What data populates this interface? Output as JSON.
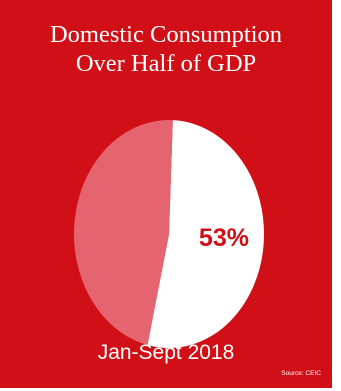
{
  "chart_data": {
    "type": "pie",
    "title_line1": "Domestic Consumption",
    "title_line2": "Over Half of GDP",
    "slices": [
      {
        "value": 53,
        "label": "53%",
        "color": "#ffffff"
      },
      {
        "value": 47,
        "label": "",
        "color": "#e4656f"
      }
    ],
    "period": "Jan-Sept 2018",
    "source": "Source: CEIC"
  },
  "colors": {
    "background": "#d10f16",
    "label_text": "#d10f16",
    "text": "#ffffff"
  }
}
